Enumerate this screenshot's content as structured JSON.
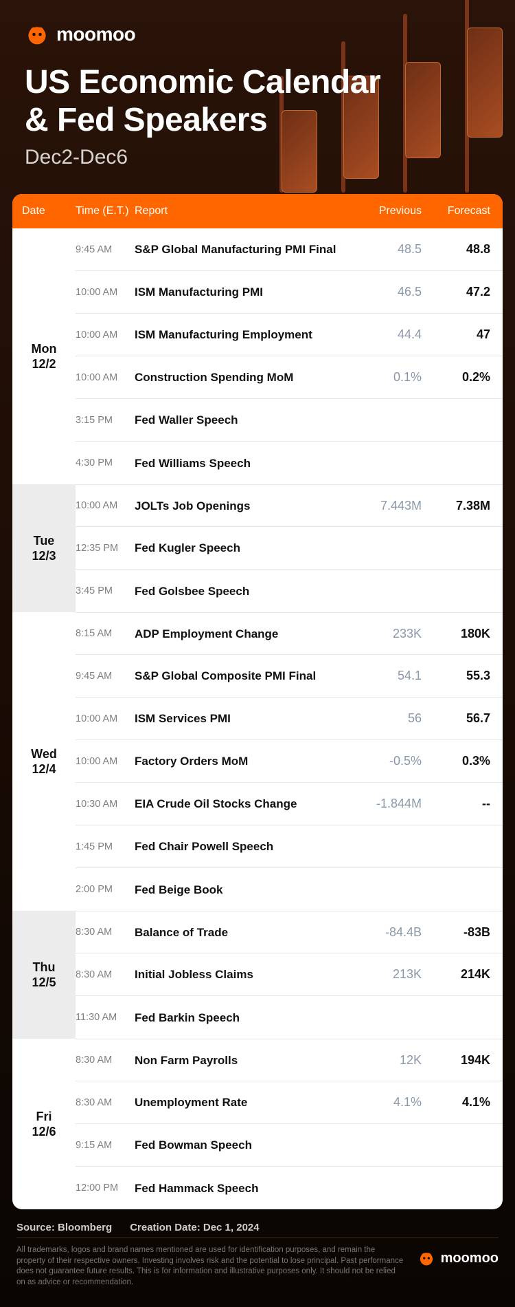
{
  "brand": "moomoo",
  "title_line1": "US Economic Calendar",
  "title_line2": "& Fed Speakers",
  "date_range": "Dec2-Dec6",
  "columns": {
    "date": "Date",
    "time": "Time (E.T.)",
    "report": "Report",
    "previous": "Previous",
    "forecast": "Forecast"
  },
  "colors": {
    "accent": "#ff6600",
    "prev_text": "#8a98aa",
    "bg_gradient_top": "#2a1308",
    "bg_gradient_bottom": "#0a0502",
    "row_divider": "#e6e6e6",
    "shaded_day": "#ececec"
  },
  "days": [
    {
      "weekday": "Mon",
      "date": "12/2",
      "shaded": false,
      "events": [
        {
          "time": "9:45 AM",
          "report": "S&P Global Manufacturing PMI Final",
          "previous": "48.5",
          "forecast": "48.8"
        },
        {
          "time": "10:00 AM",
          "report": "ISM Manufacturing PMI",
          "previous": "46.5",
          "forecast": "47.2"
        },
        {
          "time": "10:00 AM",
          "report": "ISM Manufacturing Employment",
          "previous": "44.4",
          "forecast": "47"
        },
        {
          "time": "10:00 AM",
          "report": "Construction Spending MoM",
          "previous": "0.1%",
          "forecast": "0.2%"
        },
        {
          "time": "3:15 PM",
          "report": "Fed Waller Speech",
          "previous": "",
          "forecast": ""
        },
        {
          "time": "4:30 PM",
          "report": "Fed Williams Speech",
          "previous": "",
          "forecast": ""
        }
      ]
    },
    {
      "weekday": "Tue",
      "date": "12/3",
      "shaded": true,
      "events": [
        {
          "time": "10:00 AM",
          "report": "JOLTs Job Openings",
          "previous": "7.443M",
          "forecast": "7.38M"
        },
        {
          "time": "12:35 PM",
          "report": "Fed Kugler Speech",
          "previous": "",
          "forecast": ""
        },
        {
          "time": "3:45 PM",
          "report": "Fed Golsbee Speech",
          "previous": "",
          "forecast": ""
        }
      ]
    },
    {
      "weekday": "Wed",
      "date": "12/4",
      "shaded": false,
      "events": [
        {
          "time": "8:15 AM",
          "report": "ADP Employment Change",
          "previous": "233K",
          "forecast": "180K"
        },
        {
          "time": "9:45 AM",
          "report": "S&P Global Composite PMI Final",
          "previous": "54.1",
          "forecast": "55.3"
        },
        {
          "time": "10:00 AM",
          "report": "ISM Services PMI",
          "previous": "56",
          "forecast": "56.7"
        },
        {
          "time": "10:00 AM",
          "report": "Factory Orders MoM",
          "previous": "-0.5%",
          "forecast": "0.3%"
        },
        {
          "time": "10:30 AM",
          "report": "EIA Crude Oil Stocks Change",
          "previous": "-1.844M",
          "forecast": "--"
        },
        {
          "time": "1:45 PM",
          "report": "Fed Chair Powell Speech",
          "previous": "",
          "forecast": ""
        },
        {
          "time": "2:00 PM",
          "report": "Fed Beige Book",
          "previous": "",
          "forecast": ""
        }
      ]
    },
    {
      "weekday": "Thu",
      "date": "12/5",
      "shaded": true,
      "events": [
        {
          "time": "8:30 AM",
          "report": "Balance of Trade",
          "previous": "-84.4B",
          "forecast": "-83B"
        },
        {
          "time": "8:30 AM",
          "report": "Initial Jobless Claims",
          "previous": "213K",
          "forecast": "214K"
        },
        {
          "time": "11:30 AM",
          "report": "Fed Barkin Speech",
          "previous": "",
          "forecast": ""
        }
      ]
    },
    {
      "weekday": "Fri",
      "date": "12/6",
      "shaded": false,
      "events": [
        {
          "time": "8:30 AM",
          "report": "Non Farm Payrolls",
          "previous": "12K",
          "forecast": "194K"
        },
        {
          "time": "8:30 AM",
          "report": "Unemployment Rate",
          "previous": "4.1%",
          "forecast": "4.1%"
        },
        {
          "time": "9:15 AM",
          "report": "Fed Bowman Speech",
          "previous": "",
          "forecast": ""
        },
        {
          "time": "12:00 PM",
          "report": "Fed Hammack Speech",
          "previous": "",
          "forecast": ""
        }
      ]
    }
  ],
  "source": "Source: Bloomberg",
  "creation_date": "Creation Date: Dec 1, 2024",
  "disclaimer": "All trademarks, logos and brand names mentioned are used for identification purposes, and remain the property of their respective owners. Investing involves risk and the potential to lose principal. Past performance does not guarantee future results. This is for information and illustrative purposes only. It should not be relied on as advice or recommendation."
}
